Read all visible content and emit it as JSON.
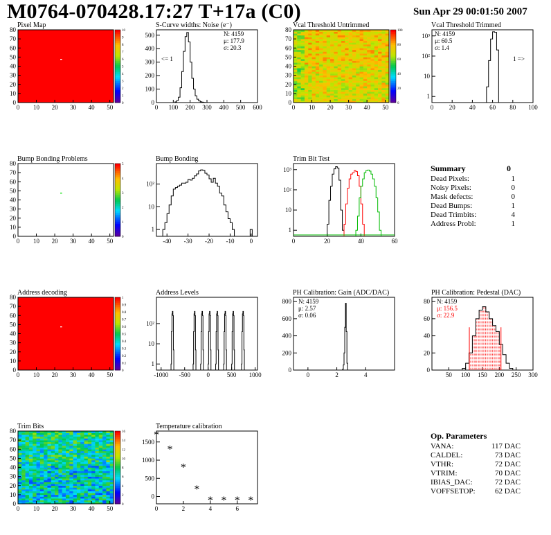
{
  "header": {
    "title": "M0764-070428.17:27 T+17a (C0)",
    "date": "Sun Apr 29 00:01:50 2007"
  },
  "panels": {
    "pixel_map": {
      "title": "Pixel Map"
    },
    "scurve": {
      "title": "S-Curve widths: Noise (e⁻)",
      "stats": [
        "N: 4159",
        "μ: 177.9",
        "σ: 20.3"
      ],
      "annot": "<= 1"
    },
    "vcal_untrimmed": {
      "title": "Vcal Threshold Untrimmed"
    },
    "vcal_trimmed": {
      "title": "Vcal Threshold Trimmed",
      "stats": [
        "N: 4159",
        "μ: 60.5",
        "σ:  1.4"
      ],
      "annot": "1 =>"
    },
    "bump_problems": {
      "title": "Bump Bonding Problems"
    },
    "bump_bonding": {
      "title": "Bump Bonding"
    },
    "trim_bit_test": {
      "title": "Trim Bit Test"
    },
    "address_decoding": {
      "title": "Address decoding"
    },
    "address_levels": {
      "title": "Address Levels"
    },
    "ph_gain": {
      "title": "PH Calibration: Gain (ADC/DAC)",
      "stats": [
        "N: 4159",
        "μ: 2.57",
        "σ: 0.06"
      ]
    },
    "ph_pedestal": {
      "title": "PH Calibration: Pedestal (DAC)",
      "stats": [
        "N: 4159",
        "μ: 156.5",
        "σ: 22.9"
      ]
    },
    "trim_bits": {
      "title": "Trim Bits"
    },
    "temperature": {
      "title": "Temperature calibration"
    }
  },
  "summary": {
    "title": "Summary",
    "title_value": "0",
    "rows": [
      {
        "label": "Dead Pixels:",
        "value": "1"
      },
      {
        "label": "Noisy Pixels:",
        "value": "0"
      },
      {
        "label": "Mask defects:",
        "value": "0"
      },
      {
        "label": "Dead Bumps:",
        "value": "1"
      },
      {
        "label": "Dead Trimbits:",
        "value": "4"
      },
      {
        "label": "Address Probl:",
        "value": "1"
      }
    ]
  },
  "op_params": {
    "title": "Op. Parameters",
    "rows": [
      {
        "label": "VANA:",
        "value": "117 DAC"
      },
      {
        "label": "CALDEL:",
        "value": "73 DAC"
      },
      {
        "label": "VTHR:",
        "value": "72 DAC"
      },
      {
        "label": "VTRIM:",
        "value": "70 DAC"
      },
      {
        "label": "IBIAS_DAC:",
        "value": "72 DAC"
      },
      {
        "label": "VOFFSETOP:",
        "value": "62 DAC"
      }
    ]
  },
  "colors": {
    "map_red": "#ff0000",
    "hist_line": "#000000",
    "red_line": "#ff0000",
    "green_line": "#00bb00",
    "stat_red": "#ff0000"
  },
  "chart_data": [
    {
      "id": "pixel_map",
      "type": "heatmap",
      "title": "Pixel Map",
      "xlim": [
        0,
        52
      ],
      "ylim": [
        0,
        80
      ],
      "xticks": [
        0,
        10,
        20,
        30,
        40,
        50
      ],
      "yticks": [
        0,
        10,
        20,
        30,
        40,
        50,
        60,
        70,
        80
      ],
      "zticks": [
        "0",
        "1",
        "2",
        "3",
        "4",
        "5",
        "6",
        "7",
        "8",
        "9",
        "10"
      ],
      "description_value": "uniform maximum (red) except one pixel at (23,47)"
    },
    {
      "id": "scurve",
      "type": "histogram",
      "title": "S-Curve widths: Noise (e⁻)",
      "xlim": [
        0,
        600
      ],
      "xticks": [
        0,
        100,
        200,
        300,
        400,
        500,
        600
      ],
      "ylim": [
        0,
        540
      ],
      "yticks": [
        0,
        100,
        200,
        300,
        400,
        500
      ],
      "log": false,
      "bins_x": [
        100,
        110,
        120,
        130,
        140,
        150,
        160,
        170,
        180,
        190,
        200,
        210,
        220,
        230,
        240,
        250,
        260,
        270,
        280,
        290,
        300
      ],
      "bins_y": [
        0,
        5,
        15,
        40,
        110,
        230,
        380,
        490,
        520,
        450,
        300,
        180,
        100,
        50,
        25,
        12,
        6,
        3,
        1,
        0
      ]
    },
    {
      "id": "vcal_untrimmed",
      "type": "heatmap",
      "title": "Vcal Threshold Untrimmed",
      "xlim": [
        0,
        52
      ],
      "ylim": [
        0,
        80
      ],
      "xticks": [
        0,
        10,
        20,
        30,
        40,
        50
      ],
      "yticks": [
        0,
        10,
        20,
        30,
        40,
        50,
        60,
        70,
        80
      ],
      "zticks": [
        "0",
        "20",
        "40",
        "60",
        "80",
        "100"
      ]
    },
    {
      "id": "vcal_trimmed",
      "type": "histogram",
      "title": "Vcal Threshold Trimmed",
      "xlim": [
        0,
        100
      ],
      "xticks": [
        0,
        20,
        40,
        60,
        80,
        100
      ],
      "log": true,
      "ylim": [
        0.5,
        2000
      ],
      "yticks": [
        "1",
        "10",
        "10²",
        "10³"
      ],
      "bins_x": [
        54,
        56,
        58,
        60,
        62,
        64,
        66
      ],
      "bins_y": [
        3,
        60,
        700,
        1600,
        1500,
        200
      ]
    },
    {
      "id": "bump_problems",
      "type": "heatmap",
      "title": "Bump Bonding Problems",
      "xlim": [
        0,
        52
      ],
      "ylim": [
        0,
        80
      ],
      "xticks": [
        0,
        10,
        20,
        30,
        40,
        50
      ],
      "yticks": [
        0,
        10,
        20,
        30,
        40,
        50,
        60,
        70,
        80
      ],
      "zticks": [
        "0",
        "1",
        "2",
        "3",
        "4",
        "5"
      ],
      "description_value": "empty except one pixel at (23,47)"
    },
    {
      "id": "bump_bonding",
      "type": "histogram",
      "title": "Bump Bonding",
      "xlim": [
        -45,
        3
      ],
      "xticks": [
        -40,
        -30,
        -20,
        -10,
        0
      ],
      "log": true,
      "ylim": [
        0.5,
        800
      ],
      "yticks": [
        "1",
        "10",
        "10²"
      ],
      "bins_x": [
        -42,
        -41,
        -40,
        -39,
        -38,
        -37,
        -36,
        -35,
        -34,
        -33,
        -32,
        -31,
        -30,
        -29,
        -28,
        -27,
        -26,
        -25,
        -24,
        -23,
        -22,
        -21,
        -20,
        -19,
        -18,
        -17,
        -16,
        -15,
        -14,
        -13,
        -12,
        -11,
        -10,
        -9,
        -8
      ],
      "bins_y": [
        1,
        2,
        5,
        12,
        30,
        60,
        70,
        80,
        90,
        110,
        110,
        120,
        160,
        150,
        180,
        230,
        280,
        380,
        420,
        400,
        300,
        250,
        170,
        120,
        180,
        110,
        80,
        40,
        30,
        12,
        6,
        3,
        2,
        1
      ],
      "extra": {
        "x": 0,
        "y": 1
      }
    },
    {
      "id": "trim_bit_test",
      "type": "histogram",
      "title": "Trim Bit Test",
      "xlim": [
        0,
        60
      ],
      "xticks": [
        0,
        20,
        40,
        60
      ],
      "log": true,
      "ylim": [
        0.5,
        2000
      ],
      "yticks": [
        "1",
        "10",
        "10²",
        "10³"
      ],
      "series": [
        {
          "color": "black",
          "bins_x": [
            20,
            21,
            22,
            23,
            24,
            25,
            26,
            27,
            28,
            29,
            30
          ],
          "bins_y": [
            2,
            30,
            150,
            600,
            1100,
            1400,
            1200,
            300,
            10,
            1
          ]
        },
        {
          "color": "red",
          "bins_x": [
            30,
            31,
            32,
            33,
            34,
            35,
            36,
            37,
            38,
            39,
            40,
            41,
            42
          ],
          "bins_y": [
            2,
            20,
            120,
            350,
            600,
            700,
            900,
            800,
            500,
            150,
            20,
            2
          ]
        },
        {
          "color": "green",
          "bins_x": [
            37,
            38,
            39,
            40,
            41,
            42,
            43,
            44,
            45,
            46,
            47,
            48,
            49,
            50,
            51,
            52
          ],
          "bins_y": [
            1,
            5,
            40,
            150,
            350,
            700,
            900,
            950,
            850,
            600,
            350,
            150,
            40,
            8,
            1
          ]
        }
      ]
    },
    {
      "id": "address_decoding",
      "type": "heatmap",
      "title": "Address decoding",
      "xlim": [
        0,
        52
      ],
      "ylim": [
        0,
        80
      ],
      "xticks": [
        0,
        10,
        20,
        30,
        40,
        50
      ],
      "yticks": [
        0,
        10,
        20,
        30,
        40,
        50,
        60,
        70,
        80
      ],
      "zticks": [
        "0",
        "0.1",
        "0.2",
        "0.3",
        "0.4",
        "0.5",
        "0.6",
        "0.7",
        "0.8",
        "0.9",
        "1"
      ],
      "description_value": "uniform 1 (red) except one pixel at (23,47)"
    },
    {
      "id": "address_levels",
      "type": "histogram",
      "title": "Address Levels",
      "xlim": [
        -1100,
        1050
      ],
      "xticks": [
        -1000,
        -500,
        0,
        500,
        1000
      ],
      "log": true,
      "ylim": [
        0.5,
        2000
      ],
      "yticks": [
        "1",
        "10",
        "10²"
      ],
      "peaks": [
        -760,
        -290,
        -130,
        30,
        190,
        360,
        530,
        740
      ]
    },
    {
      "id": "ph_gain",
      "type": "histogram",
      "title": "PH Calibration: Gain (ADC/DAC)",
      "xlim": [
        -1,
        6
      ],
      "xticks": [
        0,
        2,
        4
      ],
      "ylim": [
        0,
        850
      ],
      "yticks": [
        0,
        200,
        400,
        600,
        800
      ],
      "log": false,
      "bins_x": [
        2.4,
        2.45,
        2.5,
        2.55,
        2.6,
        2.65,
        2.7,
        2.75
      ],
      "bins_y": [
        10,
        60,
        200,
        500,
        780,
        450,
        80
      ]
    },
    {
      "id": "ph_pedestal",
      "type": "histogram",
      "title": "PH Calibration: Pedestal (DAC)",
      "xlim": [
        0,
        300
      ],
      "xticks": [
        50,
        100,
        150,
        200,
        250,
        300
      ],
      "ylim": [
        0,
        85
      ],
      "yticks": [
        0,
        20,
        40,
        60,
        80
      ],
      "log": false,
      "bins_x": [
        90,
        100,
        110,
        120,
        130,
        140,
        150,
        160,
        170,
        180,
        190,
        200,
        210,
        220,
        230,
        240
      ],
      "bins_y": [
        2,
        8,
        20,
        40,
        60,
        70,
        74,
        68,
        60,
        52,
        45,
        30,
        18,
        8,
        2
      ],
      "fit_range": [
        111,
        205
      ]
    },
    {
      "id": "trim_bits",
      "type": "heatmap",
      "title": "Trim Bits",
      "xlim": [
        0,
        52
      ],
      "ylim": [
        0,
        80
      ],
      "xticks": [
        0,
        10,
        20,
        30,
        40,
        50
      ],
      "yticks": [
        0,
        10,
        20,
        30,
        40,
        50,
        60,
        70,
        80
      ],
      "zticks": [
        "0",
        "2",
        "4",
        "6",
        "8",
        "10",
        "12",
        "14",
        "16"
      ]
    },
    {
      "id": "temperature",
      "type": "scatter",
      "title": "Temperature calibration",
      "xlim": [
        0,
        7.5
      ],
      "xticks": [
        0,
        2,
        4,
        6
      ],
      "ylim": [
        -200,
        1800
      ],
      "yticks": [
        0,
        500,
        1000,
        1500
      ],
      "x": [
        0,
        1,
        2,
        3,
        4,
        5,
        6,
        7
      ],
      "y": [
        1700,
        1300,
        800,
        200,
        -100,
        -100,
        -100,
        -100
      ]
    }
  ]
}
